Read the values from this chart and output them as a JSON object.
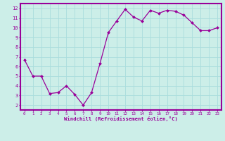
{
  "x": [
    0,
    1,
    2,
    3,
    4,
    5,
    6,
    7,
    8,
    9,
    10,
    11,
    12,
    13,
    14,
    15,
    16,
    17,
    18,
    19,
    20,
    21,
    22,
    23
  ],
  "y": [
    6.7,
    5.0,
    5.0,
    3.2,
    3.3,
    4.0,
    3.1,
    2.0,
    3.3,
    6.3,
    9.5,
    10.7,
    11.9,
    11.1,
    10.7,
    11.8,
    11.5,
    11.8,
    11.7,
    11.3,
    10.5,
    9.7,
    9.7,
    10.0
  ],
  "line_color": "#990099",
  "marker": "D",
  "marker_size": 2.0,
  "bg_color": "#cceee8",
  "grid_color": "#aadddd",
  "axis_label_color": "#990099",
  "tick_label_color": "#990099",
  "xlabel": "Windchill (Refroidissement éolien,°C)",
  "xlim": [
    -0.5,
    23.5
  ],
  "ylim": [
    1.5,
    12.5
  ],
  "yticks": [
    2,
    3,
    4,
    5,
    6,
    7,
    8,
    9,
    10,
    11,
    12
  ],
  "xticks": [
    0,
    1,
    2,
    3,
    4,
    5,
    6,
    7,
    8,
    9,
    10,
    11,
    12,
    13,
    14,
    15,
    16,
    17,
    18,
    19,
    20,
    21,
    22,
    23
  ],
  "spine_color": "#990099",
  "xlabel_fontsize": 5.2,
  "xtick_fontsize": 4.2,
  "ytick_fontsize": 5.0,
  "line_width": 0.9,
  "separator_lw": 1.5
}
